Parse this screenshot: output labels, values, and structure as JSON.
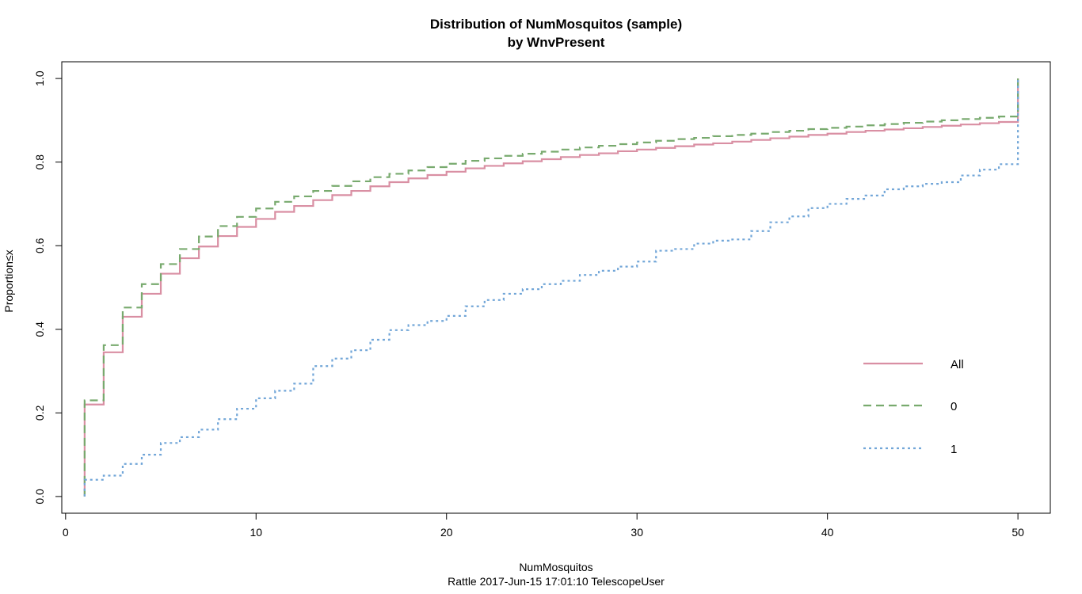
{
  "chart_data": {
    "type": "line",
    "title": "Distribution of NumMosquitos (sample)",
    "subtitle": "by WnvPresent",
    "xlabel": "NumMosquitos",
    "ylabel": "Proportion≤x",
    "caption": "Rattle 2017-Jun-15 17:01:10 TelescopeUser",
    "xlim": [
      0,
      52
    ],
    "ylim": [
      0,
      1.0
    ],
    "x_ticks": [
      0,
      10,
      20,
      30,
      40,
      50
    ],
    "y_ticks": [
      0.0,
      0.2,
      0.4,
      0.6,
      0.8,
      1.0
    ],
    "x_tick_labels": [
      "0",
      "10",
      "20",
      "30",
      "40",
      "50"
    ],
    "y_tick_labels": [
      "0.0",
      "0.2",
      "0.4",
      "0.6",
      "0.8",
      "1.0"
    ],
    "grid": false,
    "legend_position": "right",
    "x": [
      1,
      2,
      3,
      4,
      5,
      6,
      7,
      8,
      9,
      10,
      11,
      12,
      13,
      14,
      15,
      16,
      17,
      18,
      19,
      20,
      21,
      22,
      23,
      24,
      25,
      26,
      27,
      28,
      29,
      30,
      31,
      32,
      33,
      34,
      35,
      36,
      37,
      38,
      39,
      40,
      41,
      42,
      43,
      44,
      45,
      46,
      47,
      48,
      49,
      50
    ],
    "series": [
      {
        "name": "All",
        "color": "#D98FA3",
        "dash": "solid",
        "values": [
          0.22,
          0.345,
          0.43,
          0.485,
          0.533,
          0.57,
          0.598,
          0.623,
          0.645,
          0.664,
          0.681,
          0.695,
          0.709,
          0.721,
          0.731,
          0.742,
          0.752,
          0.761,
          0.769,
          0.777,
          0.785,
          0.791,
          0.797,
          0.802,
          0.807,
          0.812,
          0.817,
          0.821,
          0.826,
          0.83,
          0.834,
          0.838,
          0.842,
          0.845,
          0.849,
          0.853,
          0.857,
          0.861,
          0.865,
          0.868,
          0.872,
          0.875,
          0.878,
          0.881,
          0.884,
          0.887,
          0.89,
          0.893,
          0.896,
          0.9
        ]
      },
      {
        "name": "0",
        "color": "#78AA6E",
        "dash": "dashed",
        "values": [
          0.23,
          0.362,
          0.452,
          0.508,
          0.556,
          0.592,
          0.622,
          0.647,
          0.669,
          0.689,
          0.705,
          0.718,
          0.731,
          0.743,
          0.754,
          0.764,
          0.772,
          0.78,
          0.788,
          0.796,
          0.803,
          0.809,
          0.815,
          0.82,
          0.825,
          0.83,
          0.835,
          0.839,
          0.843,
          0.847,
          0.851,
          0.855,
          0.858,
          0.862,
          0.865,
          0.868,
          0.872,
          0.875,
          0.879,
          0.882,
          0.885,
          0.888,
          0.891,
          0.894,
          0.897,
          0.9,
          0.903,
          0.906,
          0.909,
          0.912
        ]
      },
      {
        "name": "1",
        "color": "#72A6D8",
        "dash": "dotted",
        "values": [
          0.04,
          0.05,
          0.078,
          0.1,
          0.128,
          0.142,
          0.16,
          0.185,
          0.21,
          0.235,
          0.253,
          0.27,
          0.312,
          0.33,
          0.35,
          0.375,
          0.398,
          0.41,
          0.42,
          0.432,
          0.455,
          0.47,
          0.485,
          0.496,
          0.508,
          0.516,
          0.53,
          0.54,
          0.55,
          0.562,
          0.588,
          0.592,
          0.605,
          0.612,
          0.615,
          0.635,
          0.656,
          0.67,
          0.69,
          0.7,
          0.712,
          0.72,
          0.735,
          0.742,
          0.748,
          0.752,
          0.768,
          0.782,
          0.795,
          0.8
        ]
      }
    ]
  }
}
